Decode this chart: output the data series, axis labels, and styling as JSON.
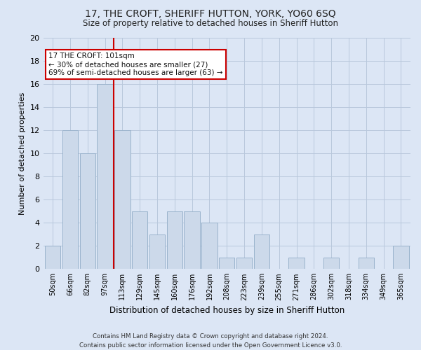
{
  "title": "17, THE CROFT, SHERIFF HUTTON, YORK, YO60 6SQ",
  "subtitle": "Size of property relative to detached houses in Sheriff Hutton",
  "xlabel": "Distribution of detached houses by size in Sheriff Hutton",
  "ylabel": "Number of detached properties",
  "categories": [
    "50sqm",
    "66sqm",
    "82sqm",
    "97sqm",
    "113sqm",
    "129sqm",
    "145sqm",
    "160sqm",
    "176sqm",
    "192sqm",
    "208sqm",
    "223sqm",
    "239sqm",
    "255sqm",
    "271sqm",
    "286sqm",
    "302sqm",
    "318sqm",
    "334sqm",
    "349sqm",
    "365sqm"
  ],
  "values": [
    2,
    12,
    10,
    16,
    12,
    5,
    3,
    5,
    5,
    4,
    1,
    1,
    3,
    0,
    1,
    0,
    1,
    0,
    1,
    0,
    2
  ],
  "bar_color": "#ccd9ea",
  "bar_edgecolor": "#9ab3cc",
  "vline_x": 3.5,
  "annot_line1": "17 THE CROFT: 101sqm",
  "annot_line2": "← 30% of detached houses are smaller (27)",
  "annot_line3": "69% of semi-detached houses are larger (63) →",
  "annot_box_color": "#ffffff",
  "annot_box_edgecolor": "#cc0000",
  "vline_color": "#cc0000",
  "ylim": [
    0,
    20
  ],
  "yticks": [
    0,
    2,
    4,
    6,
    8,
    10,
    12,
    14,
    16,
    18,
    20
  ],
  "grid_color": "#b8c8dc",
  "bg_color": "#dce6f5",
  "footer1": "Contains HM Land Registry data © Crown copyright and database right 2024.",
  "footer2": "Contains public sector information licensed under the Open Government Licence v3.0."
}
